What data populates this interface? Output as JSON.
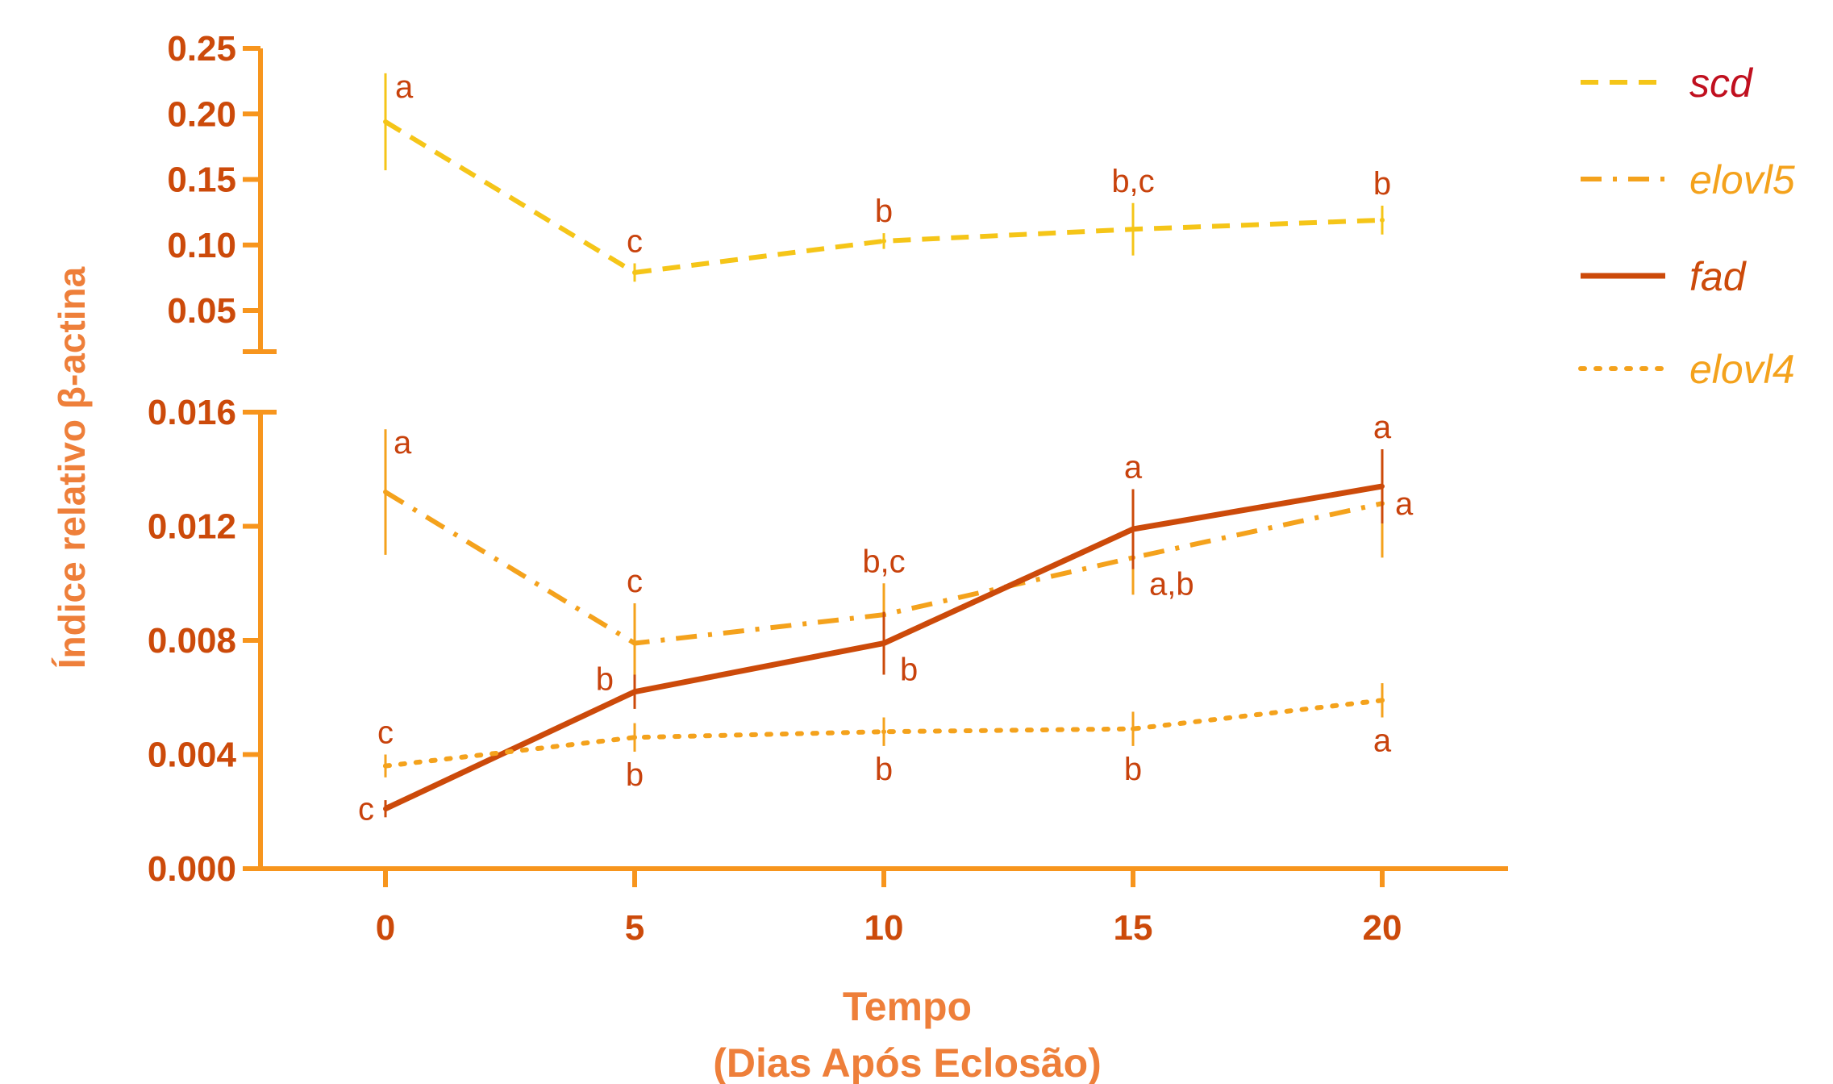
{
  "chart_data": {
    "type": "line",
    "xlabel_line1": "Tempo",
    "xlabel_line2": "(Dias Após Eclosão)",
    "ylabel": "Índice relativo β-actina",
    "x": [
      0,
      5,
      10,
      15,
      20
    ],
    "x_tick_labels": [
      "0",
      "5",
      "10",
      "15",
      "20"
    ],
    "grid": false,
    "legend_position": "top-right, outside plot",
    "upper_axis": {
      "ylim": [
        0.0,
        0.25
      ],
      "tick_labels": [
        "0.25",
        "0.20",
        "0.15",
        "0.10",
        "0.05"
      ],
      "tick_values": [
        0.25,
        0.2,
        0.15,
        0.1,
        0.05
      ]
    },
    "lower_axis": {
      "ylim": [
        0.0,
        0.016
      ],
      "tick_labels": [
        "0.016",
        "0.012",
        "0.008",
        "0.004",
        "0.000"
      ],
      "tick_values": [
        0.016,
        0.012,
        0.008,
        0.004,
        0.0
      ]
    },
    "series": [
      {
        "name": "scd",
        "panel": "upper",
        "style": "dashed",
        "color": "#f5c518",
        "label_color": "#c0101f",
        "values": [
          0.194,
          0.079,
          0.103,
          0.112,
          0.119
        ],
        "error": [
          0.037,
          0.007,
          0.006,
          0.02,
          0.011
        ],
        "letters": [
          "a",
          "c",
          "b",
          "b,c",
          "b"
        ],
        "letter_side": [
          "above",
          "above",
          "above",
          "above",
          "above"
        ]
      },
      {
        "name": "elovl5",
        "panel": "lower",
        "style": "dashdot",
        "color": "#f4a21c",
        "label_color": "#f4a21c",
        "values": [
          0.0132,
          0.0079,
          0.0089,
          0.0109,
          0.0128
        ],
        "error": [
          0.0022,
          0.0014,
          0.0011,
          0.0013,
          0.0019
        ],
        "letters": [
          "a",
          "c",
          "b,c",
          "a,b",
          "a"
        ],
        "letter_side": [
          "above",
          "above",
          "above",
          "below-right",
          "right"
        ]
      },
      {
        "name": "fad",
        "panel": "lower",
        "style": "solid",
        "color": "#cc4a0a",
        "label_color": "#cc4a0a",
        "values": [
          0.0021,
          0.0062,
          0.0079,
          0.0119,
          0.0134
        ],
        "error": [
          0.0003,
          0.0006,
          0.0011,
          0.0014,
          0.0013
        ],
        "letters": [
          "c",
          "b",
          "b",
          "a",
          "a"
        ],
        "letter_side": [
          "left",
          "left",
          "below-right",
          "above",
          "above"
        ]
      },
      {
        "name": "elovl4",
        "panel": "lower",
        "style": "dotted",
        "color": "#f4a21c",
        "label_color": "#f4a21c",
        "values": [
          0.0036,
          0.0046,
          0.0048,
          0.0049,
          0.0059
        ],
        "error": [
          0.0004,
          0.0005,
          0.0005,
          0.0006,
          0.0006
        ],
        "letters": [
          "c",
          "b",
          "b",
          "b",
          "a"
        ],
        "letter_side": [
          "above",
          "below",
          "below",
          "below",
          "below"
        ]
      }
    ]
  },
  "colors": {
    "axis": "#f7951d",
    "tick_text": "#cc4a0a",
    "axis_label": "#ee7f3a"
  }
}
